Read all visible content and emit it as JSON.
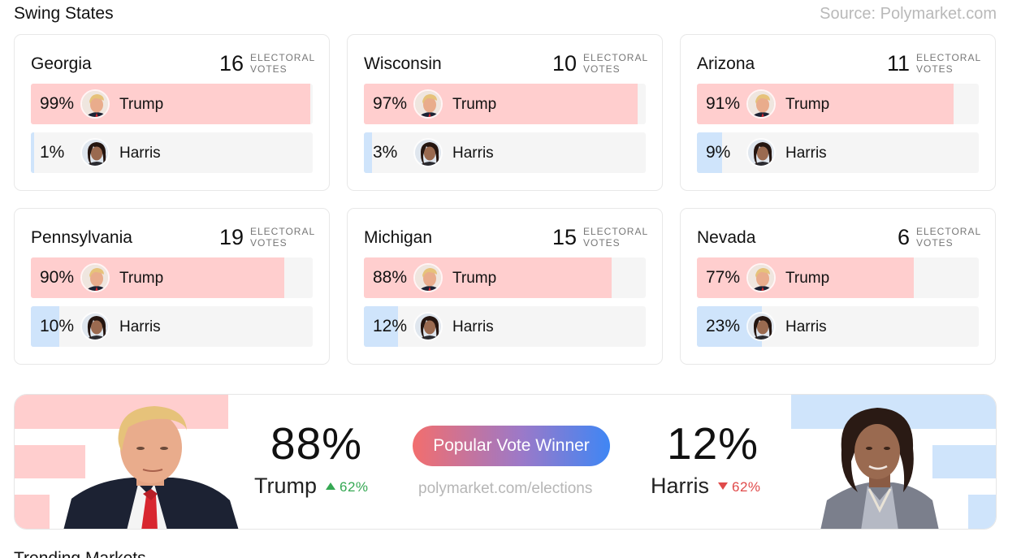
{
  "header": {
    "title": "Swing States",
    "source": "Source: Polymarket.com"
  },
  "electoral_label_line1": "ELECTORAL",
  "electoral_label_line2": "VOTES",
  "colors": {
    "trump_fill": "#ffcece",
    "harris_fill": "#cfe4fb",
    "track": "#f5f5f5"
  },
  "states": [
    {
      "name": "Georgia",
      "votes": "16",
      "trump": {
        "pct": "99%",
        "value": 99,
        "name": "Trump"
      },
      "harris": {
        "pct": "1%",
        "value": 1,
        "name": "Harris"
      }
    },
    {
      "name": "Wisconsin",
      "votes": "10",
      "trump": {
        "pct": "97%",
        "value": 97,
        "name": "Trump"
      },
      "harris": {
        "pct": "3%",
        "value": 3,
        "name": "Harris"
      }
    },
    {
      "name": "Arizona",
      "votes": "11",
      "trump": {
        "pct": "91%",
        "value": 91,
        "name": "Trump"
      },
      "harris": {
        "pct": "9%",
        "value": 9,
        "name": "Harris"
      }
    },
    {
      "name": "Pennsylvania",
      "votes": "19",
      "trump": {
        "pct": "90%",
        "value": 90,
        "name": "Trump"
      },
      "harris": {
        "pct": "10%",
        "value": 10,
        "name": "Harris"
      }
    },
    {
      "name": "Michigan",
      "votes": "15",
      "trump": {
        "pct": "88%",
        "value": 88,
        "name": "Trump"
      },
      "harris": {
        "pct": "12%",
        "value": 12,
        "name": "Harris"
      }
    },
    {
      "name": "Nevada",
      "votes": "6",
      "trump": {
        "pct": "77%",
        "value": 77,
        "name": "Trump"
      },
      "harris": {
        "pct": "23%",
        "value": 23,
        "name": "Harris"
      }
    }
  ],
  "popular_vote": {
    "badge": "Popular Vote Winner",
    "url": "polymarket.com/elections",
    "trump": {
      "pct": "88%",
      "name": "Trump",
      "delta": "62%"
    },
    "harris": {
      "pct": "12%",
      "name": "Harris",
      "delta": "62%"
    }
  },
  "next_section": {
    "title": "Trending Markets"
  }
}
